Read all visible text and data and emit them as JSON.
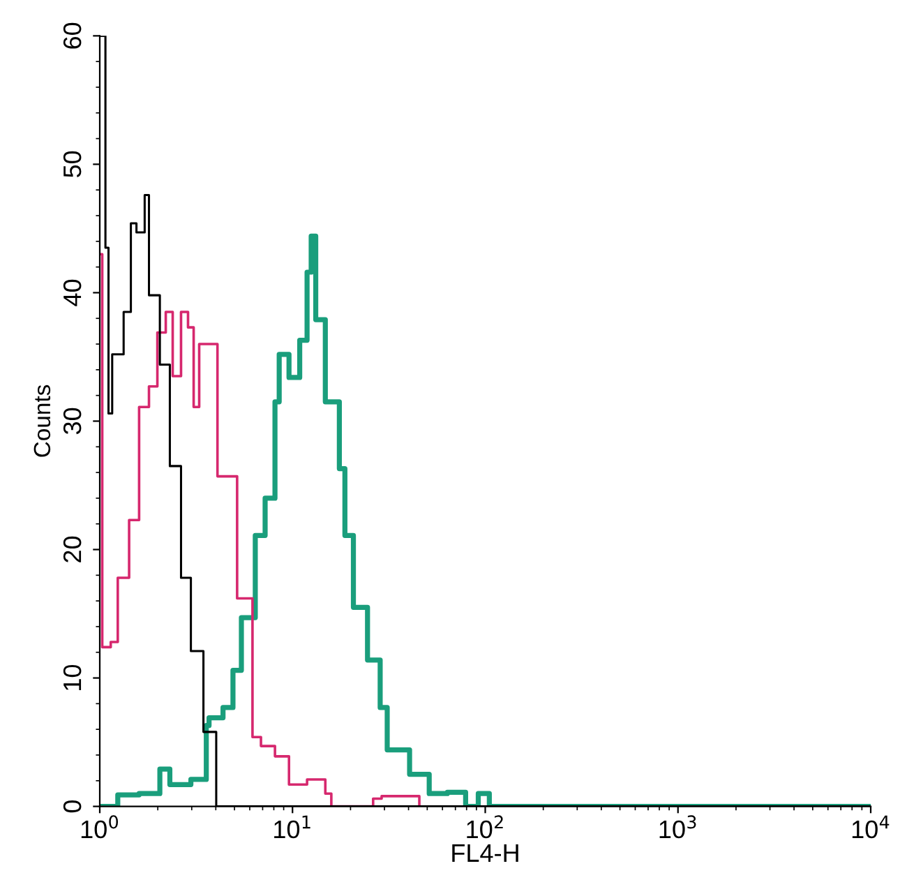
{
  "chart_data": {
    "type": "step",
    "xlabel": "FL4-H",
    "ylabel": "Counts",
    "log": "x",
    "xlim": [
      1,
      10000
    ],
    "ylim": [
      0,
      60
    ],
    "xticks": [
      {
        "value": 1,
        "label": "10$^{0}$"
      },
      {
        "value": 10,
        "label": "10$^{1}$"
      },
      {
        "value": 100,
        "label": "10$^{2}$"
      },
      {
        "value": 1000,
        "label": "10$^{3}$"
      },
      {
        "value": 10000,
        "label": "10$^{4}$"
      }
    ],
    "yticks": [
      0,
      10,
      20,
      30,
      40,
      50,
      60
    ],
    "grid": false,
    "legend": false,
    "series": [
      {
        "color": "#1a9e7c",
        "x": [
          1.03,
          1.24,
          1.6,
          2.05,
          2.31,
          2.97,
          3.57,
          3.69,
          4.36,
          4.91,
          5.43,
          6.41,
          7.21,
          8.11,
          8.53,
          9.59,
          10.9,
          11.9,
          12.5,
          13.2,
          14.8,
          17.5,
          18.7,
          20.7,
          24.5,
          28.5,
          31.0,
          40.5,
          51.2,
          63.6,
          79.1,
          92.0,
          105,
          10000
        ],
        "values": [
          0,
          0.9,
          1.0,
          2.9,
          1.7,
          2.1,
          6.3,
          6.9,
          7.7,
          10.6,
          14.7,
          21.1,
          24.0,
          31.5,
          35.2,
          33.4,
          36.3,
          41.6,
          44.4,
          37.9,
          31.5,
          26.3,
          21.1,
          15.5,
          11.4,
          7.7,
          4.4,
          2.5,
          1.0,
          1.1,
          0,
          1.0,
          0,
          0
        ]
      },
      {
        "color": "#d6286e",
        "x": [
          1,
          1.03,
          1.14,
          1.24,
          1.42,
          1.6,
          1.8,
          1.99,
          2.2,
          2.39,
          2.64,
          2.87,
          3.07,
          3.28,
          4.08,
          5.16,
          6.2,
          6.86,
          8.11,
          9.59,
          11.9,
          14.8,
          15.9,
          26.2,
          29.0,
          45.5
        ],
        "values": [
          43,
          12.4,
          12.8,
          17.8,
          22.3,
          31.1,
          32.7,
          36.9,
          38.5,
          33.5,
          38.5,
          37.3,
          31.1,
          36,
          25.7,
          16.2,
          5.4,
          4.7,
          3.9,
          1.7,
          2.1,
          1.0,
          0,
          0.6,
          0.8,
          0
        ]
      },
      {
        "color": "#000000",
        "x": [
          1,
          1.07,
          1.11,
          1.16,
          1.33,
          1.45,
          1.55,
          1.71,
          1.8,
          2.05,
          2.31,
          2.64,
          2.97,
          3.45,
          4.02,
          10000
        ],
        "values": [
          60,
          43.5,
          30.6,
          35.2,
          38.5,
          45.4,
          44.7,
          47.6,
          39.8,
          34.4,
          26.5,
          17.8,
          12.1,
          5.8,
          0,
          0
        ]
      }
    ]
  }
}
